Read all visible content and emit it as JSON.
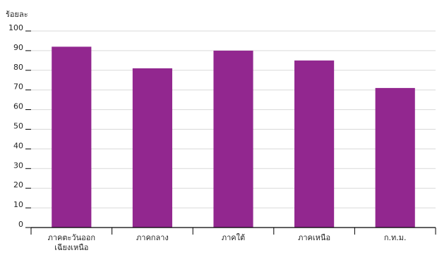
{
  "chart_data": {
    "type": "bar",
    "ylabel": "ร้อยละ",
    "categories": [
      "ภาคตะวันออก\nเฉียงเหนือ",
      "ภาคกลาง",
      "ภาคใต้",
      "ภาคเหนือ",
      "ก.ท.ม."
    ],
    "values": [
      92,
      81,
      90,
      85,
      71
    ],
    "ylim": [
      0,
      100
    ],
    "yticks": [
      0,
      10,
      20,
      30,
      40,
      50,
      60,
      70,
      80,
      90,
      100
    ],
    "grid": true,
    "legend": "none",
    "colors": {
      "bar": "#92278f",
      "grid": "#d9d9d9",
      "axis": "#000000"
    }
  }
}
